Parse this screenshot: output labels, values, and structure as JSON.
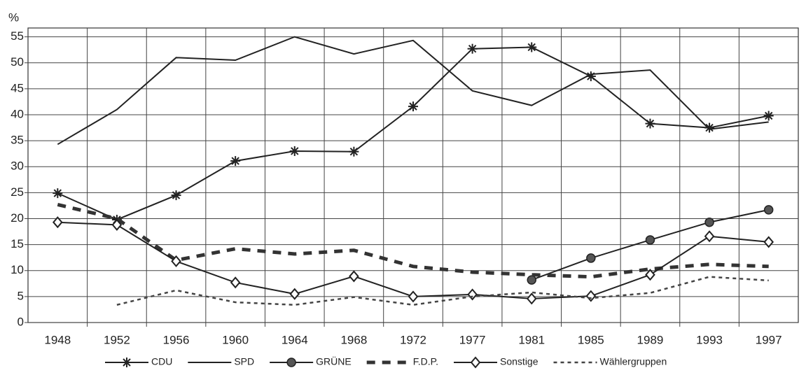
{
  "chart_data": {
    "type": "line",
    "y_label": "%",
    "categories": [
      "1948",
      "1952",
      "1956",
      "1960",
      "1964",
      "1968",
      "1972",
      "1977",
      "1981",
      "1985",
      "1989",
      "1993",
      "1997"
    ],
    "series": [
      {
        "name": "CDU",
        "color": "#222222",
        "marker": "asterisk",
        "dash": "solid",
        "values": [
          24.9,
          19.8,
          24.5,
          31.1,
          33,
          32.9,
          41.6,
          52.7,
          53,
          47.4,
          38.3,
          37.5,
          39.8
        ]
      },
      {
        "name": "SPD",
        "color": "#222222",
        "marker": "none",
        "dash": "solid",
        "values": [
          34.3,
          41,
          51,
          50.5,
          55,
          51.7,
          54.3,
          44.6,
          41.8,
          47.8,
          48.6,
          37.2,
          38.6
        ]
      },
      {
        "name": "GRÜNE",
        "color": "#222222",
        "marker": "circle",
        "dash": "solid",
        "values": [
          null,
          null,
          null,
          null,
          null,
          null,
          null,
          null,
          8.2,
          12.4,
          15.9,
          19.3,
          21.7
        ]
      },
      {
        "name": "F.D.P.",
        "color": "#333333",
        "marker": "none",
        "dash": "dashed",
        "values": [
          22.7,
          20,
          12,
          14.2,
          13.2,
          13.9,
          10.8,
          9.7,
          9.2,
          8.8,
          10.3,
          11.2,
          10.8
        ]
      },
      {
        "name": "Sonstige",
        "color": "#222222",
        "marker": "diamond",
        "dash": "solid",
        "values": [
          19.3,
          18.8,
          11.8,
          7.7,
          5.5,
          8.9,
          5,
          5.4,
          4.6,
          5.1,
          9.2,
          16.6,
          15.5
        ]
      },
      {
        "name": "Wählergruppen",
        "color": "#444444",
        "marker": "none",
        "dash": "dotted",
        "values": [
          null,
          3.4,
          6.2,
          3.9,
          3.4,
          4.9,
          3.4,
          5,
          5.8,
          4.7,
          5.7,
          8.8,
          8.1
        ]
      }
    ],
    "ylim": [
      0,
      56.7
    ],
    "yticks": [
      0,
      5,
      10,
      15,
      20,
      25,
      30,
      35,
      40,
      45,
      50,
      55
    ],
    "grid": true,
    "legend": "bottom"
  }
}
